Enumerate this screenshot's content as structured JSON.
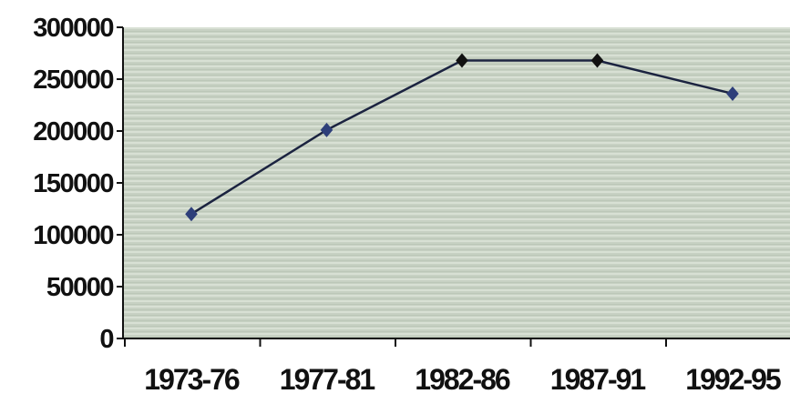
{
  "chart_data": {
    "type": "line",
    "title": "",
    "xlabel": "",
    "ylabel": "",
    "categories": [
      "1973-76",
      "1977-81",
      "1982-86",
      "1987-91",
      "1992-95"
    ],
    "series": [
      {
        "values": [
          120000,
          201000,
          268000,
          268000,
          236000
        ]
      }
    ],
    "ylim": [
      0,
      300000
    ],
    "yticks": [
      0,
      50000,
      100000,
      150000,
      200000,
      250000,
      300000
    ],
    "ytick_labels": [
      "0",
      "50000",
      "100000",
      "150000",
      "200000",
      "250000",
      "300000"
    ],
    "grid": false,
    "legend": "none",
    "colors": {
      "plot_background": "#c9d3c6",
      "line": "#1b2340",
      "marker": "#2e3f7a",
      "marker_dark": "#111111"
    }
  }
}
